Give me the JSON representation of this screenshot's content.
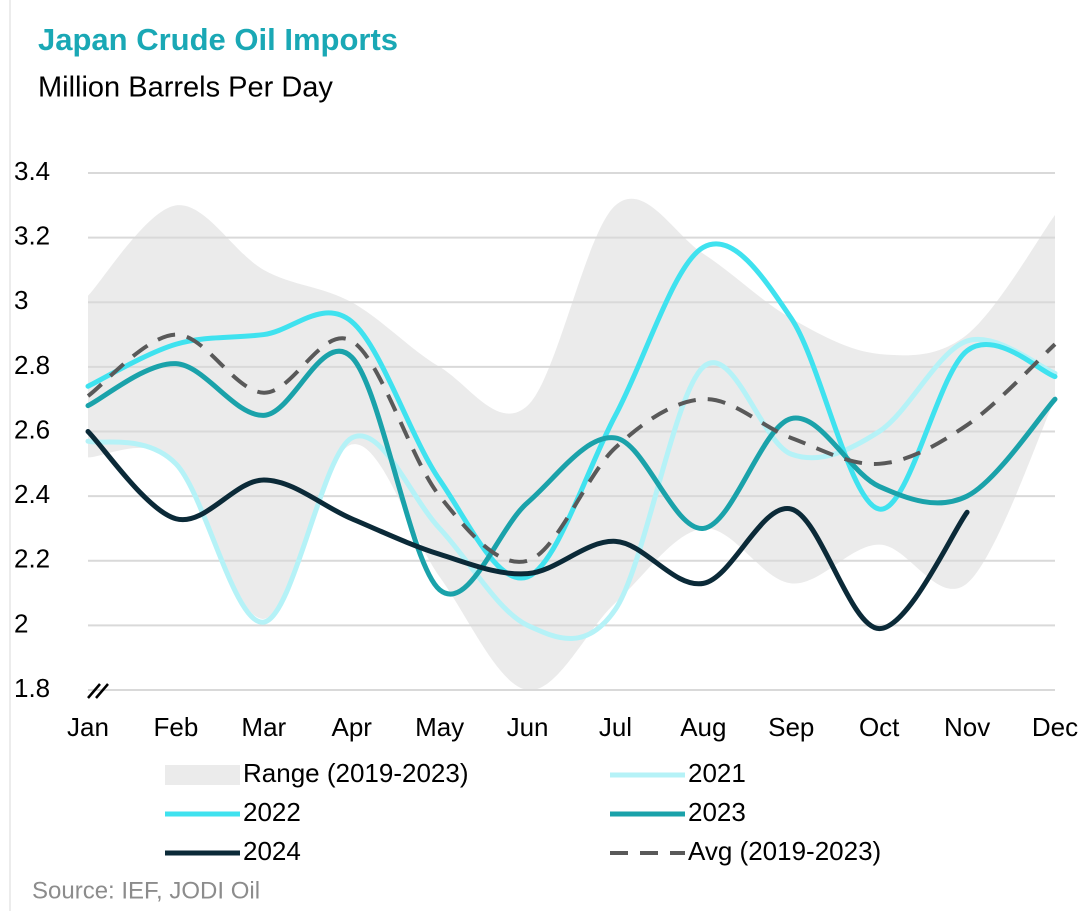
{
  "chart_data": {
    "type": "line",
    "title": "Japan Crude Oil Imports",
    "subtitle": "Million Barrels Per Day",
    "source": "Source: IEF, JODI Oil",
    "categories": [
      "Jan",
      "Feb",
      "Mar",
      "Apr",
      "May",
      "Jun",
      "Jul",
      "Aug",
      "Sep",
      "Oct",
      "Nov",
      "Dec"
    ],
    "ylim": [
      1.8,
      3.4
    ],
    "yticks": [
      1.8,
      2,
      2.2,
      2.4,
      2.6,
      2.8,
      3,
      3.2,
      3.4
    ],
    "grid": true,
    "range": {
      "name": "Range (2019-2023)",
      "color": "#ebebeb",
      "high": [
        3.02,
        3.3,
        3.1,
        3.0,
        2.8,
        2.68,
        3.3,
        3.15,
        2.95,
        2.84,
        2.9,
        3.27
      ],
      "low": [
        2.52,
        2.51,
        2.02,
        2.56,
        2.15,
        1.8,
        2.07,
        2.3,
        2.13,
        2.25,
        2.13,
        2.7
      ]
    },
    "series": [
      {
        "name": "2021",
        "color": "#b5f2f7",
        "values": [
          2.57,
          2.5,
          2.01,
          2.58,
          2.3,
          2.0,
          2.05,
          2.8,
          2.53,
          2.6,
          2.88,
          2.78
        ]
      },
      {
        "name": "2022",
        "color": "#3fe2ef",
        "values": [
          2.74,
          2.87,
          2.9,
          2.94,
          2.45,
          2.15,
          2.65,
          3.17,
          2.95,
          2.36,
          2.85,
          2.77
        ]
      },
      {
        "name": "2023",
        "color": "#1aa2aa",
        "values": [
          2.68,
          2.81,
          2.65,
          2.83,
          2.11,
          2.38,
          2.58,
          2.3,
          2.64,
          2.43,
          2.4,
          2.7
        ]
      },
      {
        "name": "2024",
        "color": "#0b2a38",
        "values": [
          2.6,
          2.33,
          2.45,
          2.33,
          2.22,
          2.16,
          2.26,
          2.13,
          2.36,
          1.99,
          2.35,
          null
        ]
      },
      {
        "name": "Avg (2019-2023)",
        "color": "#595959",
        "dashed": true,
        "values": [
          2.71,
          2.9,
          2.72,
          2.88,
          2.4,
          2.2,
          2.55,
          2.7,
          2.58,
          2.5,
          2.62,
          2.87
        ]
      }
    ]
  }
}
